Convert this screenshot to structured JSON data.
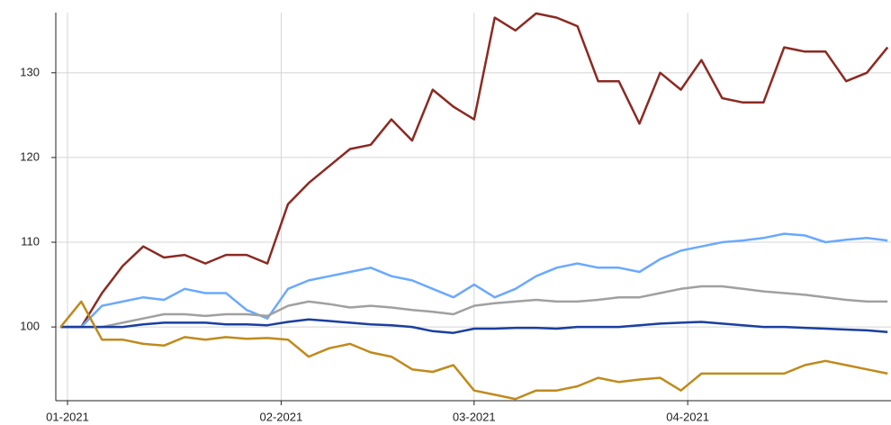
{
  "chart_data": {
    "type": "line",
    "x": [
      0,
      3,
      6,
      9,
      12,
      15,
      18,
      21,
      24,
      27,
      30,
      33,
      36,
      39,
      42,
      45,
      48,
      51,
      54,
      57,
      60,
      63,
      66,
      69,
      72,
      75,
      78,
      81,
      84,
      87,
      90,
      93,
      96,
      99,
      102,
      105,
      108,
      111,
      114,
      117,
      120
    ],
    "series": [
      {
        "color": "#8b2a22",
        "values": [
          100,
          100,
          104,
          107.2,
          109.5,
          108.2,
          108.5,
          107.5,
          108.5,
          108.5,
          107.5,
          114.5,
          117,
          119,
          121,
          121.5,
          124.5,
          122,
          128,
          126,
          124.5,
          136.5,
          135,
          137,
          136.5,
          135.5,
          129,
          129,
          124,
          130,
          128,
          131.5,
          127,
          126.5,
          126.5,
          133,
          132.5,
          132.5,
          129,
          130,
          133
        ]
      },
      {
        "color": "#6aa9ff",
        "values": [
          100,
          100,
          102.5,
          103,
          103.5,
          103.2,
          104.5,
          104,
          104,
          102,
          101,
          104.5,
          105.5,
          106,
          106.5,
          107,
          106,
          105.5,
          104.5,
          103.5,
          105,
          103.5,
          104.5,
          106,
          107,
          107.5,
          107,
          107,
          106.5,
          108,
          109,
          109.5,
          110,
          110.2,
          110.5,
          111,
          110.8,
          110,
          110.3,
          110.5,
          110.2
        ]
      },
      {
        "color": "#a0a0a0",
        "values": [
          100,
          100,
          100,
          100.5,
          101,
          101.5,
          101.5,
          101.3,
          101.5,
          101.5,
          101.3,
          102.5,
          103,
          102.7,
          102.3,
          102.5,
          102.3,
          102,
          101.8,
          101.5,
          102.5,
          102.8,
          103,
          103.2,
          103,
          103,
          103.2,
          103.5,
          103.5,
          104,
          104.5,
          104.8,
          104.8,
          104.5,
          104.2,
          104,
          103.8,
          103.5,
          103.2,
          103,
          103
        ]
      },
      {
        "color": "#1a3fa0",
        "values": [
          100,
          100,
          100,
          100,
          100.3,
          100.5,
          100.5,
          100.5,
          100.3,
          100.3,
          100.2,
          100.6,
          100.9,
          100.7,
          100.5,
          100.3,
          100.2,
          100,
          99.5,
          99.3,
          99.8,
          99.8,
          99.9,
          99.9,
          99.8,
          100,
          100,
          100,
          100.2,
          100.4,
          100.5,
          100.6,
          100.4,
          100.2,
          100,
          100,
          99.9,
          99.8,
          99.7,
          99.6,
          99.4
        ]
      },
      {
        "color": "#c08a1c",
        "values": [
          100,
          103,
          98.5,
          98.5,
          98,
          97.8,
          98.8,
          98.5,
          98.8,
          98.6,
          98.7,
          98.5,
          96.5,
          97.5,
          98,
          97,
          96.5,
          95,
          94.7,
          95.5,
          92.5,
          92,
          91.5,
          92.5,
          92.5,
          93,
          94,
          93.5,
          93.8,
          94,
          92.5,
          94.5,
          94.5,
          94.5,
          94.5,
          94.5,
          95.5,
          96,
          95.5,
          95,
          94.5
        ]
      }
    ],
    "xlim": [
      -0.7,
      120.5
    ],
    "xticks": [
      {
        "value": 1,
        "label": "01-2021"
      },
      {
        "value": 32,
        "label": "02-2021"
      },
      {
        "value": 60,
        "label": "03-2021"
      },
      {
        "value": 91,
        "label": "04-2021"
      }
    ],
    "ylim": [
      91.3,
      137.1
    ],
    "yticks": [
      100,
      110,
      120,
      130
    ],
    "grid": true
  }
}
